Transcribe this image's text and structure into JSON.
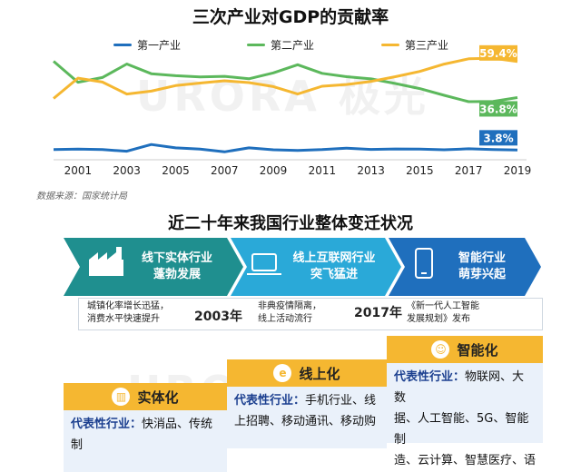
{
  "chart_data": {
    "type": "line",
    "title": "三次产业对GDP的贡献率",
    "x": [
      2000,
      2001,
      2002,
      2003,
      2004,
      2005,
      2006,
      2007,
      2008,
      2009,
      2010,
      2011,
      2012,
      2013,
      2014,
      2015,
      2016,
      2017,
      2018,
      2019
    ],
    "xticks": [
      "2001",
      "2003",
      "2005",
      "2007",
      "2009",
      "2011",
      "2013",
      "2015",
      "2017",
      "2019"
    ],
    "series": [
      {
        "name": "第一产业",
        "color": "#1f6fbd",
        "values": [
          4.1,
          4.4,
          4.1,
          3.1,
          7.3,
          5.2,
          4.4,
          2.7,
          5.2,
          4.0,
          3.6,
          4.1,
          5.0,
          4.2,
          4.5,
          4.4,
          4.0,
          4.6,
          4.1,
          3.8
        ],
        "end_label": "3.8%"
      },
      {
        "name": "第二产业",
        "color": "#5cb85c",
        "values": [
          59.6,
          46.4,
          49.4,
          57.9,
          51.8,
          50.5,
          49.7,
          50.1,
          48.6,
          52.3,
          57.4,
          52.0,
          49.9,
          48.5,
          45.6,
          42.4,
          38.2,
          34.2,
          34.4,
          36.8
        ],
        "end_label": "36.8%"
      },
      {
        "name": "第三产业",
        "color": "#f5b731",
        "values": [
          36.2,
          49.0,
          46.5,
          39.0,
          40.8,
          44.3,
          45.9,
          47.3,
          46.2,
          43.7,
          39.0,
          43.9,
          45.0,
          46.9,
          49.9,
          53.2,
          57.8,
          61.1,
          61.5,
          59.4
        ],
        "end_label": "59.4%"
      }
    ],
    "ylim": [
      0,
      65
    ],
    "grid": false,
    "legend_position": "top"
  },
  "source_note": "数据来源：国家统计局",
  "watermark": "URORA 极光",
  "section2": {
    "title": "近二十年来我国行业整体变迁状况",
    "arrows": [
      {
        "line1": "线下实体行业",
        "line2": "蓬勃发展",
        "color": "#1f8f8f"
      },
      {
        "line1": "线上互联网行业",
        "line2": "突飞猛进",
        "color": "#2aa9d8"
      },
      {
        "line1": "智能行业",
        "line2": "萌芽兴起",
        "color": "#1f6fbd"
      }
    ],
    "notes": [
      {
        "text1": "城镇化率增长迅猛，",
        "text2": "消费水平快速提升"
      },
      {
        "year": "2003年"
      },
      {
        "text1": "非典疫情隔离，",
        "text2": "线上活动流行"
      },
      {
        "year": "2017年"
      },
      {
        "text1": "《新一代人工智能",
        "text2": "发展规划》发布"
      }
    ],
    "cards": [
      {
        "title": "实体化",
        "label": "代表性行业：",
        "lines": [
          "快消品、传统制"
        ]
      },
      {
        "title": "线上化",
        "label": "代表性行业：",
        "lines": [
          "手机行业、线",
          "上招聘、移动通讯、移动购"
        ]
      },
      {
        "title": "智能化",
        "label": "代表性行业：",
        "lines": [
          "物联网、大数",
          "据、人工智能、5G、智能制",
          "造、云计算、智慧医疗、语"
        ]
      }
    ]
  },
  "colors": {
    "primary": "#1f6fbd",
    "secondary": "#5cb85c",
    "tertiary": "#f5b731",
    "card_bg": "#eaf1fa"
  }
}
